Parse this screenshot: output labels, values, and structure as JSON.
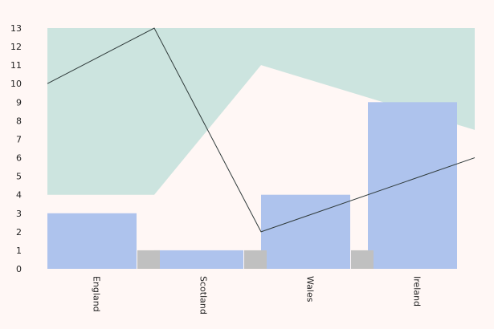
{
  "chart_data": {
    "type": "bar",
    "categories": [
      "England",
      "Scotland",
      "Wales",
      "Ireland"
    ],
    "title": "",
    "xlabel": "",
    "ylabel": "",
    "ylim": [
      0,
      13
    ],
    "yticks": [
      "0",
      "1",
      "2",
      "3",
      "4",
      "5",
      "6",
      "7",
      "8",
      "9",
      "10",
      "11",
      "12",
      "13"
    ],
    "grid": false,
    "legend": "none",
    "bars": [
      {
        "values": [
          3,
          1,
          4,
          9
        ],
        "color": "#aec3ed"
      },
      {
        "values": [
          1,
          1,
          1,
          0
        ],
        "color": "#c0c0c0"
      }
    ],
    "band": {
      "lower": [
        4,
        4,
        11,
        7.5
      ],
      "upper": [
        13,
        13,
        13,
        13
      ],
      "color": "#cce4df"
    },
    "line": {
      "values": [
        10,
        13,
        2,
        6
      ],
      "color": "#2f3a3a"
    }
  }
}
